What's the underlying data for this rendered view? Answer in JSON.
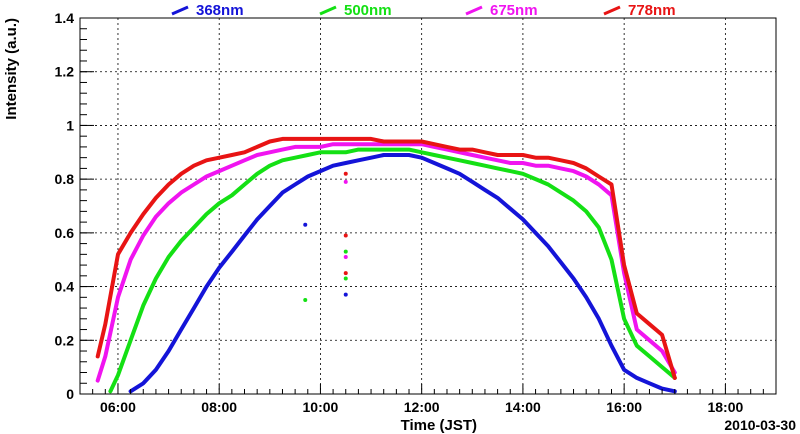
{
  "chart_data": {
    "type": "line",
    "title": "",
    "xlabel": "Time (JST)",
    "ylabel": "Intensity (a.u.)",
    "date_label": "2010-03-30",
    "xlim": [
      5.25,
      19.0
    ],
    "ylim": [
      0,
      1.4
    ],
    "grid": true,
    "legend_position": "top",
    "x_ticks": [
      {
        "value": 6,
        "label": "06:00"
      },
      {
        "value": 8,
        "label": "08:00"
      },
      {
        "value": 10,
        "label": "10:00"
      },
      {
        "value": 12,
        "label": "12:00"
      },
      {
        "value": 14,
        "label": "14:00"
      },
      {
        "value": 16,
        "label": "16:00"
      },
      {
        "value": 18,
        "label": "18:00"
      }
    ],
    "y_ticks": [
      {
        "value": 0,
        "label": "0"
      },
      {
        "value": 0.2,
        "label": "0.2"
      },
      {
        "value": 0.4,
        "label": "0.4"
      },
      {
        "value": 0.6,
        "label": "0.6"
      },
      {
        "value": 0.8,
        "label": "0.8"
      },
      {
        "value": 1.0,
        "label": "1"
      },
      {
        "value": 1.2,
        "label": "1.2"
      },
      {
        "value": 1.4,
        "label": "1.4"
      }
    ],
    "series": [
      {
        "name": "368nm",
        "color": "#1414d8",
        "x": [
          6.25,
          6.5,
          6.75,
          7.0,
          7.25,
          7.5,
          7.75,
          8.0,
          8.25,
          8.5,
          8.75,
          9.0,
          9.25,
          9.5,
          9.75,
          10.0,
          10.25,
          10.5,
          10.75,
          11.0,
          11.25,
          11.5,
          11.75,
          12.0,
          12.25,
          12.5,
          12.75,
          13.0,
          13.25,
          13.5,
          13.75,
          14.0,
          14.25,
          14.5,
          14.75,
          15.0,
          15.25,
          15.5,
          15.75,
          16.0,
          16.25,
          16.5,
          16.75,
          17.0
        ],
        "y": [
          0.01,
          0.04,
          0.09,
          0.16,
          0.24,
          0.32,
          0.4,
          0.47,
          0.53,
          0.59,
          0.65,
          0.7,
          0.75,
          0.78,
          0.81,
          0.83,
          0.85,
          0.86,
          0.87,
          0.88,
          0.89,
          0.89,
          0.89,
          0.88,
          0.86,
          0.84,
          0.82,
          0.79,
          0.76,
          0.73,
          0.69,
          0.65,
          0.6,
          0.55,
          0.49,
          0.43,
          0.36,
          0.28,
          0.18,
          0.09,
          0.06,
          0.04,
          0.02,
          0.01
        ]
      },
      {
        "name": "500nm",
        "color": "#14e014",
        "x": [
          5.85,
          6.0,
          6.25,
          6.5,
          6.75,
          7.0,
          7.25,
          7.5,
          7.75,
          8.0,
          8.25,
          8.5,
          8.75,
          9.0,
          9.25,
          9.5,
          9.75,
          10.0,
          10.25,
          10.5,
          10.75,
          11.0,
          11.25,
          11.5,
          11.75,
          12.0,
          12.25,
          12.5,
          12.75,
          13.0,
          13.25,
          13.5,
          13.75,
          14.0,
          14.25,
          14.5,
          14.75,
          15.0,
          15.25,
          15.5,
          15.75,
          16.0,
          16.25,
          16.5,
          16.75,
          17.0
        ],
        "y": [
          0.01,
          0.07,
          0.2,
          0.33,
          0.43,
          0.51,
          0.57,
          0.62,
          0.67,
          0.71,
          0.74,
          0.78,
          0.82,
          0.85,
          0.87,
          0.88,
          0.89,
          0.9,
          0.9,
          0.9,
          0.91,
          0.91,
          0.91,
          0.91,
          0.91,
          0.9,
          0.89,
          0.88,
          0.87,
          0.86,
          0.85,
          0.84,
          0.83,
          0.82,
          0.8,
          0.78,
          0.75,
          0.72,
          0.68,
          0.62,
          0.5,
          0.28,
          0.18,
          0.14,
          0.1,
          0.06
        ]
      },
      {
        "name": "675nm",
        "color": "#f014f0",
        "x": [
          5.6,
          5.75,
          6.0,
          6.25,
          6.5,
          6.75,
          7.0,
          7.25,
          7.5,
          7.75,
          8.0,
          8.25,
          8.5,
          8.75,
          9.0,
          9.25,
          9.5,
          9.75,
          10.0,
          10.25,
          10.5,
          10.75,
          11.0,
          11.25,
          11.5,
          11.75,
          12.0,
          12.25,
          12.5,
          12.75,
          13.0,
          13.25,
          13.5,
          13.75,
          14.0,
          14.25,
          14.5,
          14.75,
          15.0,
          15.25,
          15.5,
          15.75,
          16.0,
          16.25,
          16.5,
          16.75,
          17.0
        ],
        "y": [
          0.05,
          0.14,
          0.36,
          0.5,
          0.59,
          0.66,
          0.71,
          0.75,
          0.78,
          0.81,
          0.83,
          0.85,
          0.87,
          0.89,
          0.9,
          0.91,
          0.92,
          0.92,
          0.92,
          0.93,
          0.93,
          0.93,
          0.93,
          0.93,
          0.93,
          0.93,
          0.93,
          0.92,
          0.91,
          0.9,
          0.89,
          0.88,
          0.87,
          0.86,
          0.86,
          0.85,
          0.85,
          0.84,
          0.83,
          0.81,
          0.78,
          0.74,
          0.45,
          0.24,
          0.2,
          0.16,
          0.08
        ]
      },
      {
        "name": "778nm",
        "color": "#e81414",
        "x": [
          5.6,
          5.75,
          6.0,
          6.25,
          6.5,
          6.75,
          7.0,
          7.25,
          7.5,
          7.75,
          8.0,
          8.25,
          8.5,
          8.75,
          9.0,
          9.25,
          9.5,
          9.75,
          10.0,
          10.25,
          10.5,
          10.75,
          11.0,
          11.25,
          11.5,
          11.75,
          12.0,
          12.25,
          12.5,
          12.75,
          13.0,
          13.25,
          13.5,
          13.75,
          14.0,
          14.25,
          14.5,
          14.75,
          15.0,
          15.25,
          15.5,
          15.75,
          16.0,
          16.25,
          16.5,
          16.75,
          17.0
        ],
        "y": [
          0.14,
          0.26,
          0.52,
          0.6,
          0.67,
          0.73,
          0.78,
          0.82,
          0.85,
          0.87,
          0.88,
          0.89,
          0.9,
          0.92,
          0.94,
          0.95,
          0.95,
          0.95,
          0.95,
          0.95,
          0.95,
          0.95,
          0.95,
          0.94,
          0.94,
          0.94,
          0.94,
          0.93,
          0.92,
          0.91,
          0.91,
          0.9,
          0.89,
          0.89,
          0.89,
          0.88,
          0.88,
          0.87,
          0.86,
          0.84,
          0.81,
          0.78,
          0.48,
          0.3,
          0.26,
          0.22,
          0.06
        ]
      }
    ],
    "outliers": [
      {
        "series": "368nm",
        "x": 9.7,
        "y": 0.63
      },
      {
        "series": "500nm",
        "x": 9.7,
        "y": 0.35
      },
      {
        "series": "368nm",
        "x": 10.5,
        "y": 0.37
      },
      {
        "series": "500nm",
        "x": 10.5,
        "y": 0.53
      },
      {
        "series": "500nm",
        "x": 10.5,
        "y": 0.43
      },
      {
        "series": "675nm",
        "x": 10.5,
        "y": 0.51
      },
      {
        "series": "778nm",
        "x": 10.5,
        "y": 0.45
      },
      {
        "series": "778nm",
        "x": 10.5,
        "y": 0.59
      },
      {
        "series": "778nm",
        "x": 10.5,
        "y": 0.82
      },
      {
        "series": "675nm",
        "x": 10.5,
        "y": 0.79
      }
    ]
  }
}
